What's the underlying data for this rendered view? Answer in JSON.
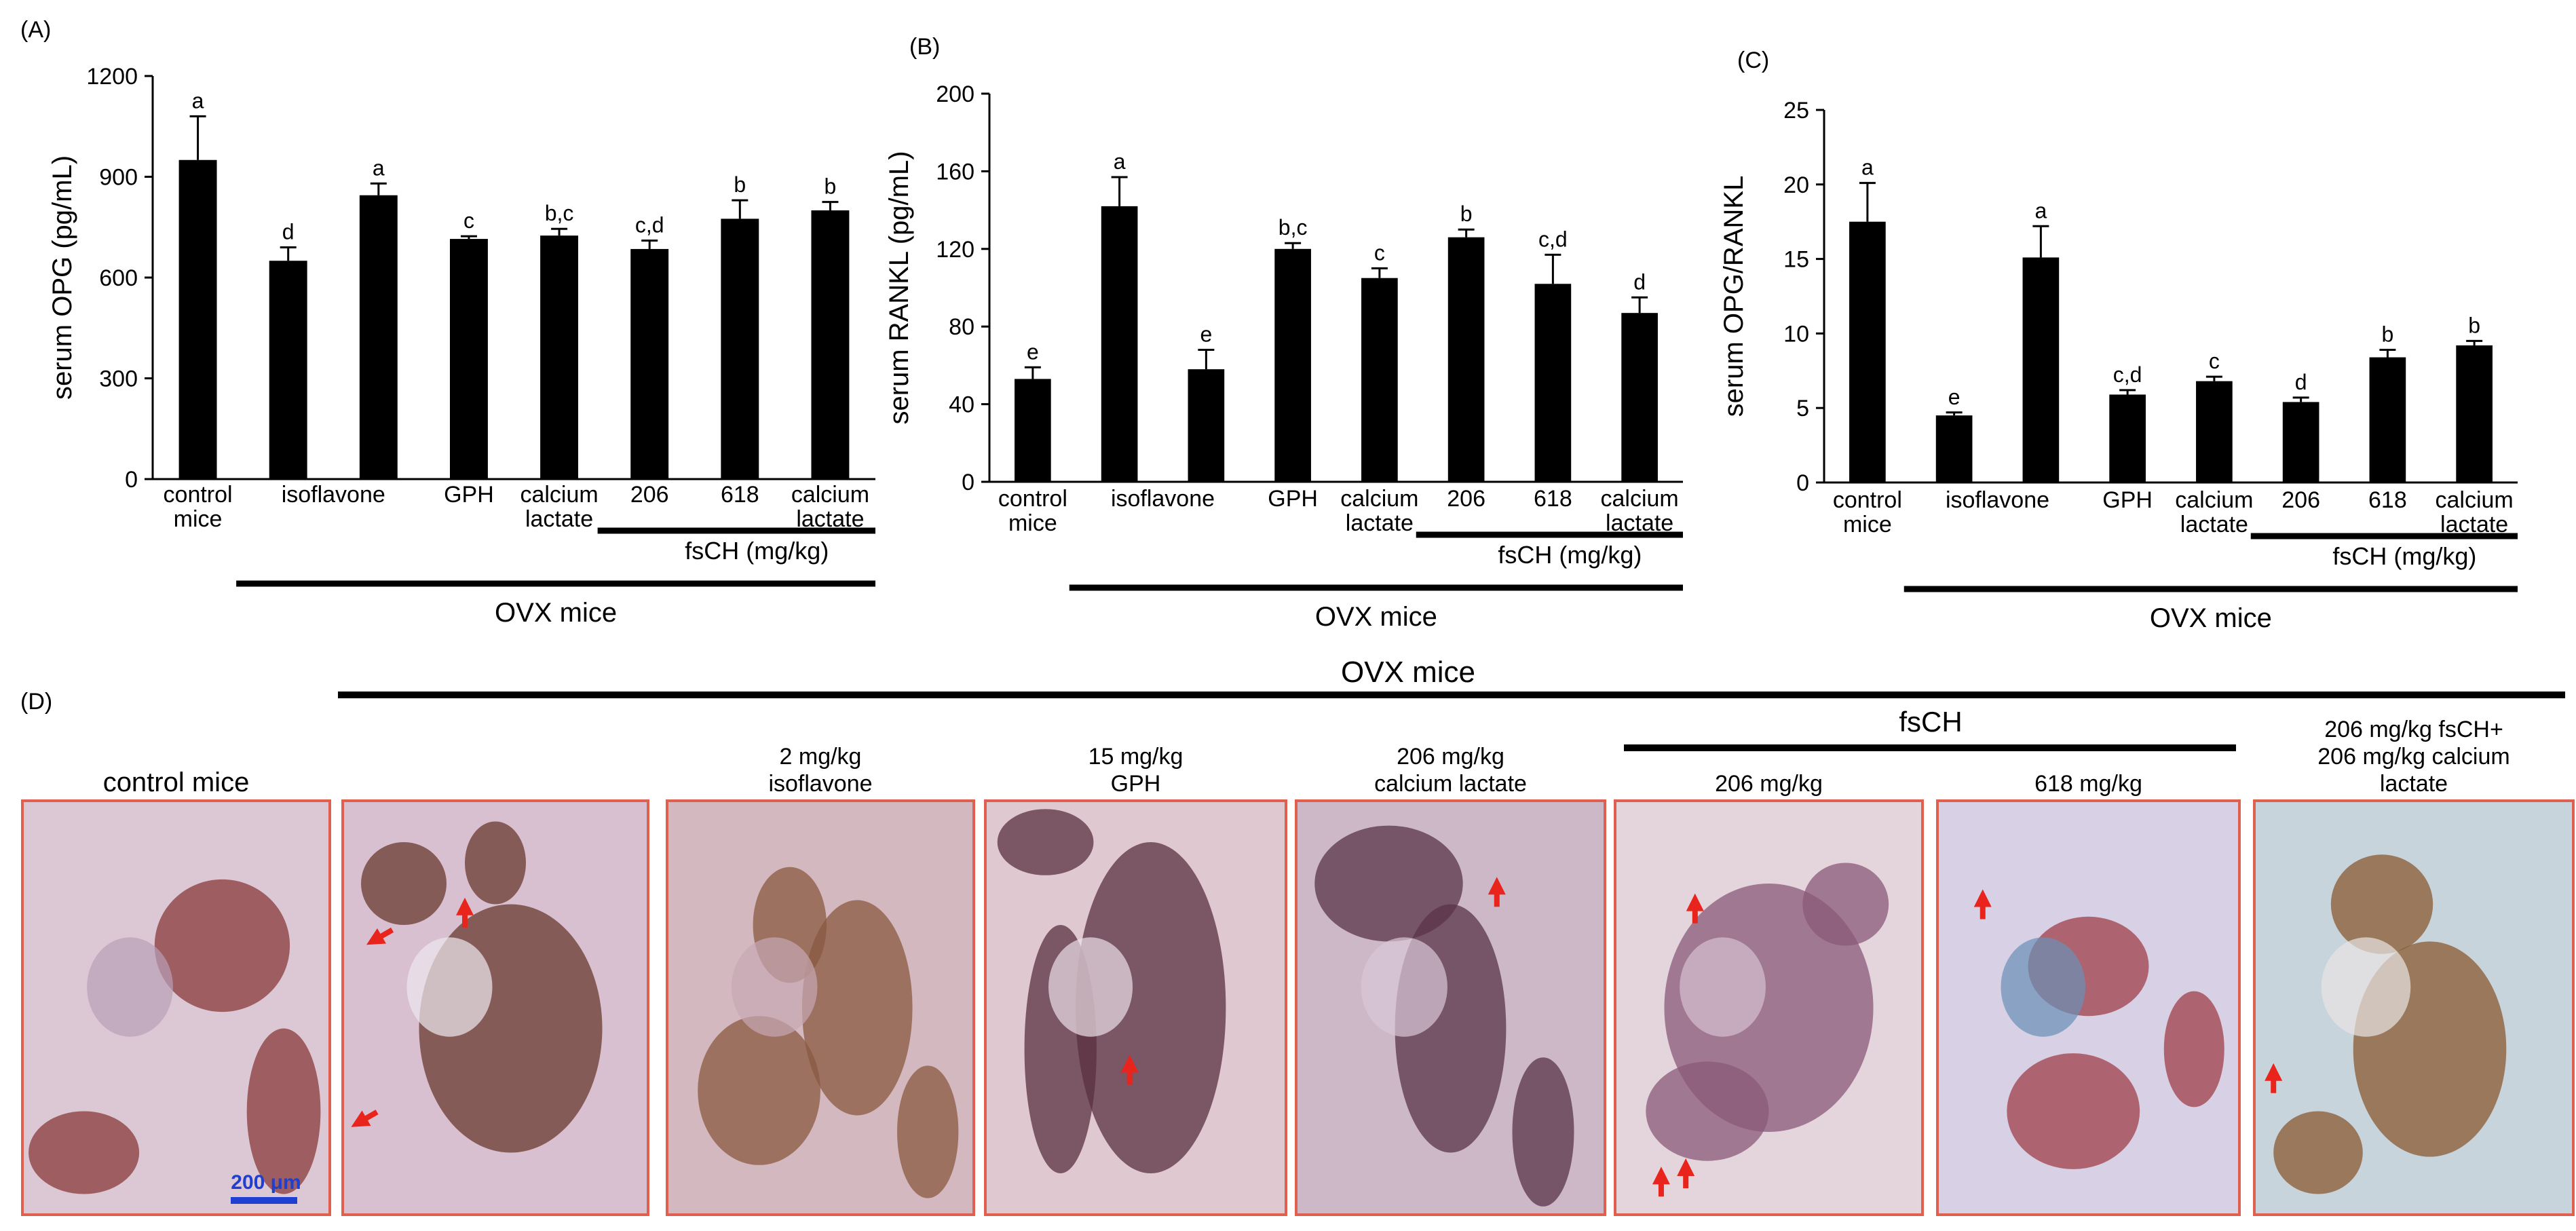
{
  "chart_data": [
    {
      "panel_label": "(A)",
      "type": "bar",
      "ylabel": "serum OPG (pg/mL)",
      "ylim": [
        0,
        1200
      ],
      "yticks": [
        "0",
        "300",
        "600",
        "900",
        "1200"
      ],
      "categories": [
        [
          "control",
          "mice"
        ],
        [
          "isoflavone"
        ],
        [
          "GPH"
        ],
        [
          "calcium",
          "lactate"
        ],
        [
          "206"
        ],
        [
          "618"
        ],
        [
          "calcium",
          "lactate"
        ]
      ],
      "bars": [
        {
          "value": 950,
          "error": 130,
          "letter": "a"
        },
        {
          "value": 650,
          "error": 40,
          "letter": "d"
        },
        {
          "value": 845,
          "error": 35,
          "letter": "a"
        },
        {
          "value": 715,
          "error": 8,
          "letter": "c"
        },
        {
          "value": 725,
          "error": 20,
          "letter": "b,c"
        },
        {
          "value": 685,
          "error": 25,
          "letter": "c,d"
        },
        {
          "value": 775,
          "error": 55,
          "letter": "b"
        },
        {
          "value": 800,
          "error": 25,
          "letter": "b"
        }
      ],
      "group_label": "fsCH (mg/kg)",
      "ovx_label": "OVX mice"
    },
    {
      "panel_label": "(B)",
      "type": "bar",
      "ylabel": "serum RANKL (pg/mL)",
      "ylim": [
        0,
        200
      ],
      "yticks": [
        "0",
        "40",
        "80",
        "120",
        "160",
        "200"
      ],
      "categories": [
        [
          "control",
          "mice"
        ],
        [
          "isoflavone"
        ],
        [
          "GPH"
        ],
        [
          "calcium",
          "lactate"
        ],
        [
          "206"
        ],
        [
          "618"
        ],
        [
          "calcium",
          "lactate"
        ]
      ],
      "bars": [
        {
          "value": 53,
          "error": 6,
          "letter": "e"
        },
        {
          "value": 142,
          "error": 15,
          "letter": "a"
        },
        {
          "value": 58,
          "error": 10,
          "letter": "e"
        },
        {
          "value": 120,
          "error": 3,
          "letter": "b,c"
        },
        {
          "value": 105,
          "error": 5,
          "letter": "c"
        },
        {
          "value": 126,
          "error": 4,
          "letter": "b"
        },
        {
          "value": 102,
          "error": 15,
          "letter": "c,d"
        },
        {
          "value": 87,
          "error": 8,
          "letter": "d"
        }
      ],
      "group_label": "fsCH (mg/kg)",
      "ovx_label": "OVX mice"
    },
    {
      "panel_label": "(C)",
      "type": "bar",
      "ylabel": "serum OPG/RANKL",
      "ylim": [
        0,
        25
      ],
      "yticks": [
        "0",
        "5",
        "10",
        "15",
        "20",
        "25"
      ],
      "categories": [
        [
          "control",
          "mice"
        ],
        [
          "isoflavone"
        ],
        [
          "GPH"
        ],
        [
          "calcium",
          "lactate"
        ],
        [
          "206"
        ],
        [
          "618"
        ],
        [
          "calcium",
          "lactate"
        ]
      ],
      "bars": [
        {
          "value": 17.5,
          "error": 2.6,
          "letter": "a"
        },
        {
          "value": 4.5,
          "error": 0.2,
          "letter": "e"
        },
        {
          "value": 15.1,
          "error": 2.1,
          "letter": "a"
        },
        {
          "value": 5.9,
          "error": 0.3,
          "letter": "c,d"
        },
        {
          "value": 6.8,
          "error": 0.3,
          "letter": "c"
        },
        {
          "value": 5.4,
          "error": 0.3,
          "letter": "d"
        },
        {
          "value": 8.4,
          "error": 0.5,
          "letter": "b"
        },
        {
          "value": 9.2,
          "error": 0.3,
          "letter": "b"
        }
      ],
      "group_label": "fsCH (mg/kg)",
      "ovx_label": "OVX mice"
    }
  ],
  "histology": {
    "panel_label": "(D)",
    "ovx_label": "OVX mice",
    "fsch_label": "fsCH",
    "scale_bar": "200 μm",
    "images": [
      {
        "label": [
          "control mice"
        ]
      },
      {
        "label": []
      },
      {
        "label": [
          "2 mg/kg",
          "isoflavone"
        ]
      },
      {
        "label": [
          "15 mg/kg",
          "GPH"
        ]
      },
      {
        "label": [
          "206 mg/kg",
          "calcium lactate"
        ]
      },
      {
        "label": [
          "206 mg/kg"
        ]
      },
      {
        "label": [
          "618 mg/kg"
        ]
      },
      {
        "label": [
          "206 mg/kg fsCH+",
          "206 mg/kg calcium",
          "lactate"
        ]
      }
    ],
    "colors": {
      "bar": "#000000",
      "image_border": "#e06050",
      "arrow": "#e8241c",
      "scale_bar": "#1f3fd0"
    }
  }
}
